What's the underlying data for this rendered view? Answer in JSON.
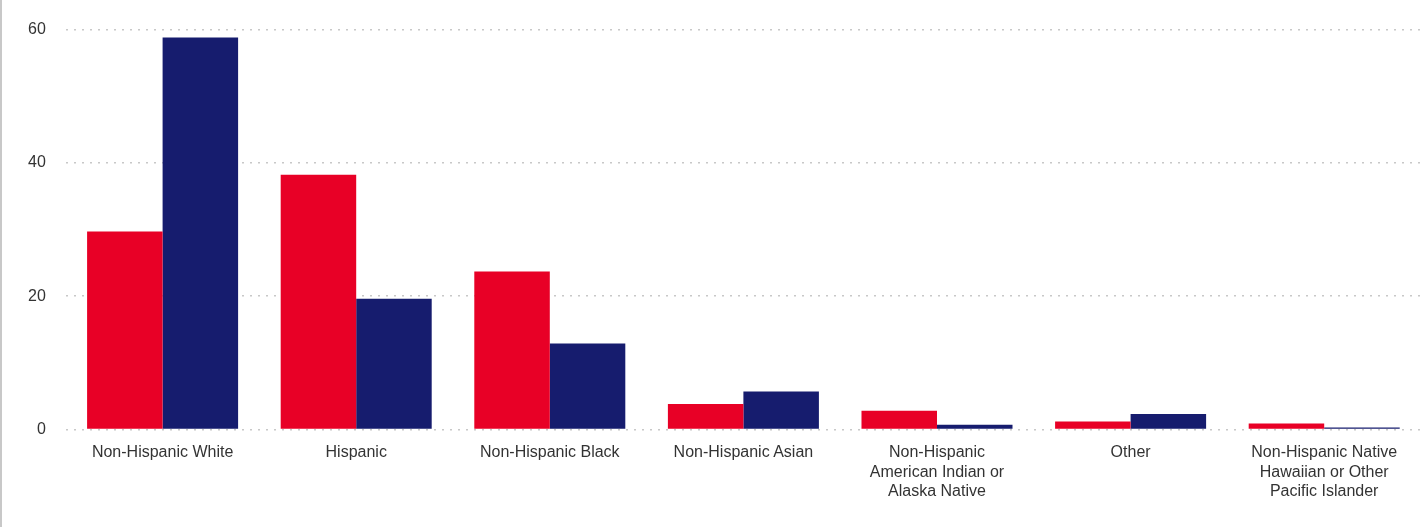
{
  "chart_data": {
    "type": "bar",
    "categories": [
      "Non-Hispanic White",
      "Hispanic",
      "Non-Hispanic Black",
      "Non-Hispanic Asian",
      "Non-Hispanic American Indian or Alaska Native",
      "Other",
      "Non-Hispanic Native Hawaiian or Other Pacific Islander"
    ],
    "series": [
      {
        "color": "#e80026",
        "values": [
          29.7,
          38.2,
          23.7,
          3.8,
          2.8,
          1.2,
          0.9
        ]
      },
      {
        "color": "#161c6e",
        "values": [
          58.8,
          19.6,
          12.9,
          5.7,
          0.7,
          2.3,
          0.3
        ]
      }
    ],
    "ylim": [
      0,
      60
    ],
    "yticks": [
      0,
      20,
      40,
      60
    ],
    "grid": "y",
    "legend": false
  }
}
